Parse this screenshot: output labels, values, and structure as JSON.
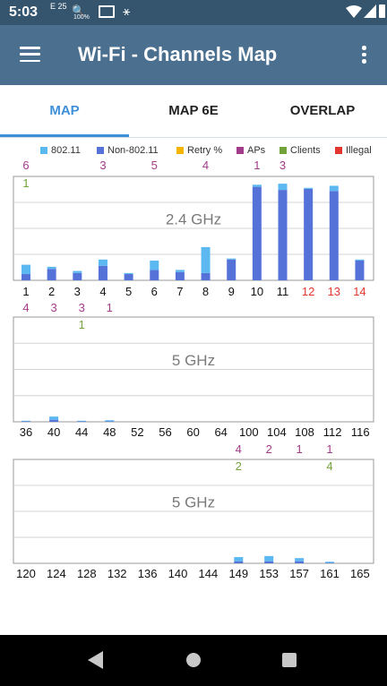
{
  "status_bar": {
    "time": "5:03",
    "icons": [
      "network-icon",
      "search-icon",
      "battery-saver-icon",
      "cast-icon",
      "usb-icon",
      "wifi-icon",
      "signal-icon",
      "battery-icon"
    ],
    "signal_text": "E 25",
    "percent_text": "100%"
  },
  "app_bar": {
    "title": "Wi-Fi - Channels Map",
    "menu_icon": "hamburger-icon",
    "more_icon": "more-vert-icon"
  },
  "tabs": [
    {
      "label": "MAP",
      "active": true
    },
    {
      "label": "MAP 6E",
      "active": false
    },
    {
      "label": "OVERLAP",
      "active": false
    }
  ],
  "legend": [
    {
      "label": "802.11",
      "color": "#5bb8f0"
    },
    {
      "label": "Non-802.11",
      "color": "#5572d8"
    },
    {
      "label": "Retry %",
      "color": "#f5b400"
    },
    {
      "label": "APs",
      "color": "#a23c8a"
    },
    {
      "label": "Clients",
      "color": "#72a33b"
    },
    {
      "label": "Illegal",
      "color": "#e2362e"
    }
  ],
  "chart_data": [
    {
      "type": "bar",
      "title": "2.4 GHz",
      "ylim": [
        0,
        100
      ],
      "categories": [
        "1",
        "2",
        "3",
        "4",
        "5",
        "6",
        "7",
        "8",
        "9",
        "10",
        "11",
        "12",
        "13",
        "14"
      ],
      "illegal_channels": [
        "12",
        "13",
        "14"
      ],
      "series": [
        {
          "name": "Non-802.11",
          "values": [
            6,
            11,
            7,
            14,
            6,
            10,
            8,
            7,
            20,
            90,
            87,
            88,
            86,
            19
          ]
        },
        {
          "name": "802.11",
          "values": [
            9,
            2,
            2,
            6,
            1,
            9,
            2,
            25,
            1,
            2,
            6,
            1,
            5,
            1
          ]
        }
      ],
      "aps": [
        "6",
        "",
        "",
        "3",
        "",
        "5",
        "",
        "4",
        "",
        "1",
        "3",
        "",
        "",
        ""
      ],
      "clients": [
        "1",
        "",
        "",
        "",
        "",
        "",
        "",
        "",
        "",
        "",
        "",
        "",
        "",
        ""
      ]
    },
    {
      "type": "bar",
      "title": "5 GHz",
      "ylim": [
        0,
        100
      ],
      "categories": [
        "36",
        "40",
        "44",
        "48",
        "52",
        "56",
        "60",
        "64",
        "100",
        "104",
        "108",
        "112",
        "116"
      ],
      "illegal_channels": [],
      "series": [
        {
          "name": "Non-802.11",
          "values": [
            0.5,
            2,
            0.5,
            0.5,
            0,
            0,
            0,
            0,
            0,
            0,
            0,
            0,
            0
          ]
        },
        {
          "name": "802.11",
          "values": [
            0.5,
            3,
            0.5,
            1,
            0,
            0,
            0,
            0,
            0,
            0,
            0,
            0,
            0
          ]
        }
      ],
      "aps": [
        "4",
        "3",
        "3",
        "1",
        "",
        "",
        "",
        "",
        "",
        "",
        "",
        "",
        ""
      ],
      "clients": [
        "",
        "",
        "1",
        "",
        "",
        "",
        "",
        "",
        "",
        "",
        "",
        "",
        ""
      ]
    },
    {
      "type": "bar",
      "title": "5 GHz",
      "ylim": [
        0,
        100
      ],
      "categories": [
        "120",
        "124",
        "128",
        "132",
        "136",
        "140",
        "144",
        "149",
        "153",
        "157",
        "161",
        "165"
      ],
      "illegal_channels": [],
      "series": [
        {
          "name": "Non-802.11",
          "values": [
            0,
            0,
            0,
            0,
            0,
            0,
            0,
            2,
            2,
            2,
            0.5,
            0
          ]
        },
        {
          "name": "802.11",
          "values": [
            0,
            0,
            0,
            0,
            0,
            0,
            0,
            4,
            5,
            3,
            1,
            0
          ]
        }
      ],
      "aps": [
        "",
        "",
        "",
        "",
        "",
        "",
        "",
        "4",
        "2",
        "1",
        "1",
        ""
      ],
      "clients": [
        "",
        "",
        "",
        "",
        "",
        "",
        "",
        "2",
        "",
        "",
        "4",
        ""
      ]
    }
  ],
  "nav_bar": {
    "back_icon": "back-triangle-icon",
    "home_icon": "home-circle-icon",
    "recents_icon": "recents-square-icon"
  }
}
